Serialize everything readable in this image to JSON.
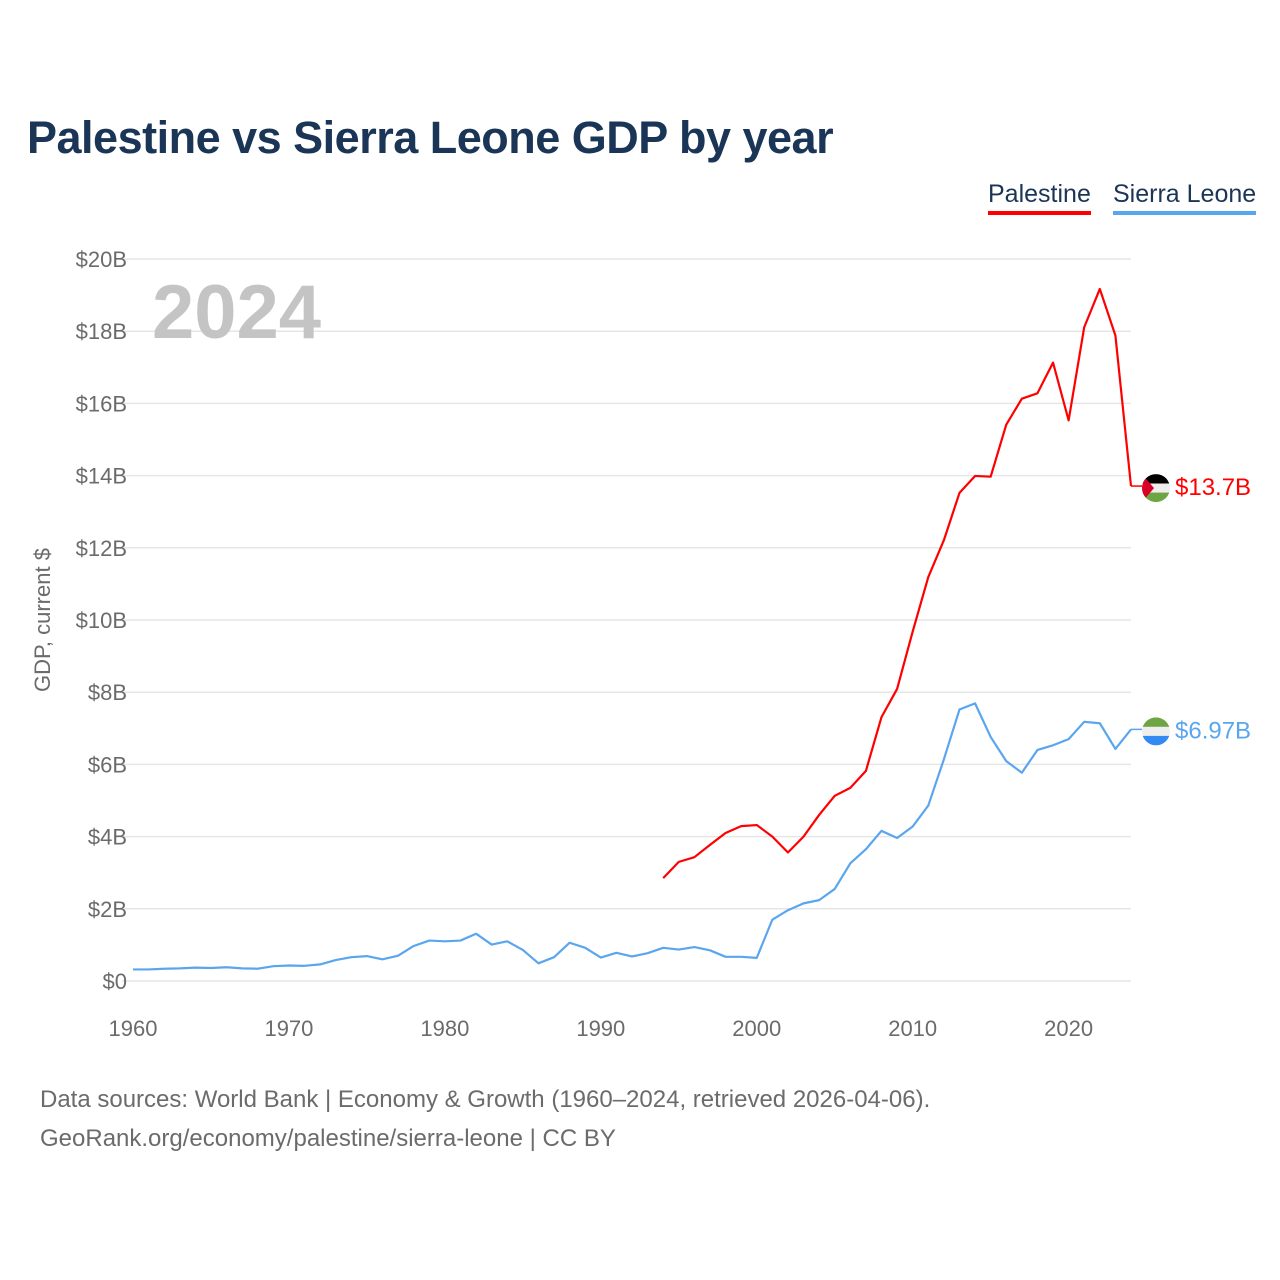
{
  "chart_data": {
    "type": "line",
    "title": "Palestine vs Sierra Leone GDP by year",
    "ylabel": "GDP, current $",
    "xlabel": "",
    "year_watermark": "2024",
    "xlim": [
      1960,
      2024
    ],
    "ylim": [
      0,
      20
    ],
    "x_ticks": [
      1960,
      1970,
      1980,
      1990,
      2000,
      2010,
      2020
    ],
    "y_ticks": [
      0,
      2,
      4,
      6,
      8,
      10,
      12,
      14,
      16,
      18,
      20
    ],
    "y_tick_labels": [
      "$0",
      "$2B",
      "$4B",
      "$6B",
      "$8B",
      "$10B",
      "$12B",
      "$14B",
      "$16B",
      "$18B",
      "$20B"
    ],
    "grid": true,
    "legend_position": "top-right",
    "series": [
      {
        "name": "Palestine",
        "color": "#ff0000",
        "end_label": "$13.7B",
        "flag": "palestine-flag",
        "start_year": 1994,
        "values": [
          2.85,
          3.3,
          3.43,
          3.77,
          4.1,
          4.29,
          4.32,
          4.0,
          3.56,
          4.0,
          4.6,
          5.13,
          5.35,
          5.82,
          7.31,
          8.09,
          9.68,
          11.19,
          12.21,
          13.52,
          13.99,
          13.97,
          15.41,
          16.13,
          16.28,
          17.13,
          15.53,
          18.11,
          19.17,
          17.88,
          13.71
        ]
      },
      {
        "name": "Sierra Leone",
        "color": "#5aa6ee",
        "end_label": "$6.97B",
        "flag": "sierra-leone-flag",
        "start_year": 1960,
        "values": [
          0.32,
          0.32,
          0.34,
          0.35,
          0.37,
          0.36,
          0.38,
          0.35,
          0.34,
          0.41,
          0.43,
          0.42,
          0.46,
          0.58,
          0.66,
          0.69,
          0.6,
          0.7,
          0.97,
          1.12,
          1.1,
          1.12,
          1.31,
          1.01,
          1.1,
          0.86,
          0.49,
          0.66,
          1.06,
          0.92,
          0.65,
          0.78,
          0.68,
          0.77,
          0.92,
          0.87,
          0.94,
          0.85,
          0.67,
          0.67,
          0.64,
          1.7,
          1.96,
          2.15,
          2.24,
          2.55,
          3.26,
          3.65,
          4.16,
          3.96,
          4.28,
          4.86,
          6.14,
          7.52,
          7.69,
          6.76,
          6.09,
          5.77,
          6.4,
          6.53,
          6.7,
          7.18,
          7.14,
          6.43,
          6.97
        ]
      }
    ]
  },
  "footer": {
    "line1": "Data sources: World Bank | Economy & Growth (1960–2024, retrieved 2026-04-06).",
    "line2": "GeoRank.org/economy/palestine/sierra-leone | CC BY"
  }
}
